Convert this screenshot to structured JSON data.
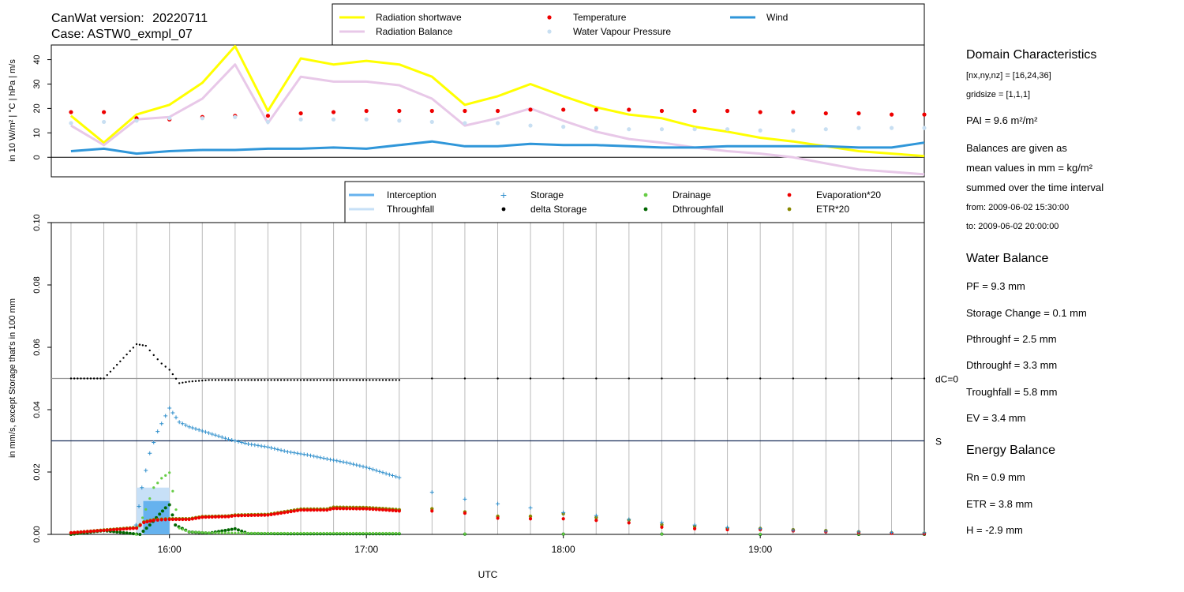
{
  "header": {
    "version_label": "CanWat version:",
    "version": "20220711",
    "case": "Case: ASTW0_exmpl_07"
  },
  "colors": {
    "radiation_shortwave": "#ffff00",
    "radiation_balance": "#e8c8e8",
    "temperature": "#ee0000",
    "water_vapour_pressure": "#c8dff2",
    "wind": "#2f96d9",
    "interception": "#66b2ee",
    "throughfall": "#c7e0f7",
    "storage": "#2f8fcc",
    "delta_storage": "#000000",
    "drainage": "#66cc44",
    "dthroughfall": "#006600",
    "evaporation": "#ee0000",
    "etr": "#888800",
    "grid": "#bbbbbb"
  },
  "info": {
    "domain_title": "Domain Characteristics",
    "dims": "[nx,ny,nz] = [16,24,36]",
    "gridsize": "gridsize = [1,1,1]",
    "pai": "PAI = 9.6 m²/m²",
    "balances_1": "Balances are given as",
    "balances_2": "mean values in mm = kg/m²",
    "balances_3": "summed over the time interval",
    "from": "from:  2009-06-02 15:30:00",
    "to": "to:       2009-06-02 20:00:00",
    "water_title": "Water Balance",
    "pf": "PF = 9.3 mm",
    "storage_change": "Storage Change = 0.1 mm",
    "pthroughf": "Pthroughf = 2.5 mm",
    "dthroughf": "Dthroughf = 3.3 mm",
    "troughfall": "Troughfall = 5.8 mm",
    "ev": "EV = 3.4 mm",
    "energy_title": "Energy Balance",
    "rn": "Rn = 0.9 mm",
    "etr": "ETR = 3.8 mm",
    "h": "H = -2.9 mm"
  },
  "chart_data": [
    {
      "type": "line",
      "ylabel": "in 10 W/m² | °C | hPa | m/s",
      "ylim": [
        -8,
        46
      ],
      "yticks": [
        0,
        10,
        20,
        30,
        40
      ],
      "xlim": [
        15.4,
        19.833
      ],
      "reference_line": 0,
      "legend_placement": "top",
      "x": [
        15.5,
        15.667,
        15.833,
        16.0,
        16.167,
        16.333,
        16.5,
        16.667,
        16.833,
        17.0,
        17.167,
        17.333,
        17.5,
        17.667,
        17.833,
        18.0,
        18.167,
        18.333,
        18.5,
        18.667,
        18.833,
        19.0,
        19.167,
        19.333,
        19.5,
        19.667,
        19.833
      ],
      "series": [
        {
          "name": "Radiation shortwave",
          "style": "line",
          "values": [
            17,
            6,
            17.5,
            21.5,
            30.5,
            45.5,
            19,
            40.5,
            38,
            39.5,
            38,
            33,
            21.5,
            25,
            30,
            25,
            20.5,
            17.5,
            16,
            12.5,
            10.5,
            8,
            6.5,
            4.5,
            2.5,
            1.5,
            0.5
          ]
        },
        {
          "name": "Radiation Balance",
          "style": "line",
          "values": [
            13,
            5,
            15.5,
            16.5,
            24,
            38,
            14,
            33,
            31,
            31,
            29.5,
            24,
            13,
            16,
            20,
            15,
            10.5,
            7.5,
            6,
            4,
            2.5,
            1.5,
            0,
            -2.5,
            -5,
            -6,
            -7
          ]
        },
        {
          "name": "Temperature",
          "style": "points",
          "values": [
            18.5,
            18.5,
            16,
            15.5,
            16.5,
            17,
            17,
            18,
            18.5,
            19,
            19,
            19,
            19,
            19,
            19.5,
            19.5,
            19.5,
            19.5,
            19,
            19,
            19,
            18.5,
            18.5,
            18,
            18,
            17.5,
            17.5
          ]
        },
        {
          "name": "Water Vapour Pressure",
          "style": "points",
          "values": [
            14,
            14.5,
            15,
            16,
            16,
            16.5,
            14.5,
            15.5,
            15.5,
            15.5,
            15,
            14.5,
            14,
            14,
            13,
            12.5,
            12,
            11.5,
            11.5,
            11.5,
            11.5,
            11,
            11,
            11.5,
            12,
            12,
            12
          ]
        },
        {
          "name": "Wind",
          "style": "line",
          "values": [
            2.5,
            3.5,
            1.5,
            2.5,
            3,
            3,
            3.5,
            3.5,
            4,
            3.5,
            5,
            6.5,
            4.5,
            4.5,
            5.5,
            5,
            5,
            4.5,
            4,
            4,
            4.5,
            4.5,
            4.5,
            4.5,
            4,
            4,
            6
          ]
        }
      ]
    },
    {
      "type": "scatter",
      "xlabel": "UTC",
      "ylabel": "in mm/s, except Storage that's in 100 mm",
      "ylim": [
        0,
        0.1
      ],
      "yticks": [
        "0.00",
        "0.02",
        "0.04",
        "0.06",
        "0.08",
        "0.10"
      ],
      "xlim": [
        15.4,
        19.833
      ],
      "xticks": [
        "16:00",
        "17:00",
        "18:00",
        "19:00"
      ],
      "xtick_values": [
        16,
        17,
        18,
        19
      ],
      "grid": true,
      "reference_lines": [
        {
          "label": "dC=0",
          "y": 0.05
        },
        {
          "label": "S",
          "y": 0.03
        }
      ],
      "legend_placement": "top",
      "series": [
        {
          "name": "Interception",
          "style": "bar"
        },
        {
          "name": "Throughfall",
          "style": "bar"
        },
        {
          "name": "Storage",
          "style": "plus"
        },
        {
          "name": "delta Storage",
          "style": "dots"
        },
        {
          "name": "Drainage",
          "style": "dots"
        },
        {
          "name": "Dthroughfall",
          "style": "dots"
        },
        {
          "name": "Evaporation*20",
          "style": "dots"
        },
        {
          "name": "ETR*20",
          "style": "dots"
        }
      ],
      "bars": [
        {
          "series": "Throughfall",
          "x0": 15.833,
          "x1": 16.0,
          "y": 0.015
        },
        {
          "series": "Interception",
          "x0": 15.867,
          "x1": 16.0,
          "y": 0.0107
        }
      ],
      "storage_x": [
        15.83,
        15.86,
        15.9,
        15.94,
        15.98,
        16.0,
        16.05,
        16.1,
        16.2,
        16.3,
        16.4,
        16.5,
        16.6,
        16.7,
        16.8,
        16.9,
        17.0,
        17.1,
        17.167,
        17.333,
        17.5,
        17.667,
        17.833,
        18.0,
        18.167,
        18.333,
        18.5,
        18.667,
        18.833,
        19.0,
        19.167,
        19.333,
        19.5,
        19.667,
        19.833
      ],
      "storage_y": [
        0.003,
        0.015,
        0.026,
        0.033,
        0.038,
        0.0405,
        0.036,
        0.0345,
        0.0325,
        0.0305,
        0.029,
        0.028,
        0.0265,
        0.0255,
        0.0242,
        0.023,
        0.0215,
        0.0195,
        0.0182,
        0.0135,
        0.0113,
        0.0098,
        0.0085,
        0.007,
        0.006,
        0.0048,
        0.0038,
        0.003,
        0.0022,
        0.0018,
        0.0013,
        0.001,
        0.0008,
        0.0006,
        0.0005
      ],
      "delta_storage_x": [
        15.5,
        15.667,
        15.833,
        15.88,
        15.92,
        15.96,
        16.0,
        16.05,
        16.1,
        16.2,
        16.3,
        16.4,
        16.5,
        16.6,
        16.7,
        16.8,
        16.9,
        17.0,
        17.1,
        17.167,
        17.333,
        17.5,
        17.667,
        17.833,
        18.0,
        18.167,
        18.333,
        18.5,
        18.667,
        18.833,
        19.0,
        19.167,
        19.333,
        19.5,
        19.667,
        19.833
      ],
      "delta_storage_y": [
        0.05,
        0.05,
        0.061,
        0.0605,
        0.0575,
        0.0548,
        0.0528,
        0.0485,
        0.049,
        0.0495,
        0.0495,
        0.0495,
        0.0495,
        0.0495,
        0.0495,
        0.0495,
        0.0495,
        0.0495,
        0.0495,
        0.0495,
        0.05,
        0.05,
        0.05,
        0.05,
        0.05,
        0.05,
        0.05,
        0.05,
        0.05,
        0.05,
        0.05,
        0.05,
        0.05,
        0.05,
        0.05,
        0.05
      ],
      "drainage_x": [
        15.83,
        15.88,
        15.92,
        15.96,
        16.0,
        16.05,
        16.1,
        16.2,
        16.4,
        16.6,
        16.8,
        17.0,
        17.167,
        17.5,
        18.0,
        18.5,
        19.0,
        19.5,
        19.833
      ],
      "drainage_y": [
        0.0,
        0.008,
        0.015,
        0.018,
        0.0198,
        0.002,
        0.0008,
        0.0005,
        0.0004,
        0.0004,
        0.0004,
        0.0004,
        0.0004,
        0.0002,
        0.0001,
        0.0001,
        0.0001,
        0.0001,
        0.0001
      ],
      "dthroughfall_x": [
        15.5,
        15.667,
        15.85,
        15.9,
        15.95,
        15.98,
        16.0,
        16.03,
        16.1,
        16.2,
        16.333,
        16.4,
        16.6,
        16.8,
        17.0,
        17.167,
        17.5,
        18.0,
        18.5,
        19.0,
        19.5,
        19.833
      ],
      "dthroughfall_y": [
        0.0,
        0.0012,
        0.0,
        0.003,
        0.0065,
        0.0085,
        0.0095,
        0.003,
        0.0008,
        0.0004,
        0.0018,
        0.0003,
        0.0002,
        0.0002,
        0.0002,
        0.0002,
        0.0001,
        0.0001,
        0.0001,
        0.0,
        0.0,
        0.0
      ],
      "evaporation_x": [
        15.5,
        15.667,
        15.833,
        15.87,
        15.92,
        15.96,
        16.0,
        16.1,
        16.167,
        16.3,
        16.333,
        16.5,
        16.667,
        16.8,
        16.833,
        17.0,
        17.1,
        17.167,
        17.333,
        17.5,
        17.667,
        17.833,
        18.0,
        18.167,
        18.333,
        18.5,
        18.667,
        18.833,
        19.0,
        19.167,
        19.333,
        19.5,
        19.667,
        19.833
      ],
      "evaporation_y": [
        0.0005,
        0.0013,
        0.002,
        0.0038,
        0.0045,
        0.0047,
        0.0048,
        0.0048,
        0.0055,
        0.0057,
        0.006,
        0.0062,
        0.0078,
        0.0078,
        0.0083,
        0.0082,
        0.0078,
        0.0075,
        0.0075,
        0.0068,
        0.0052,
        0.005,
        0.005,
        0.0045,
        0.0037,
        0.0023,
        0.0018,
        0.0015,
        0.0015,
        0.0011,
        0.0008,
        0.0005,
        0.0003,
        0.0002
      ],
      "etr_x": [
        15.5,
        15.667,
        15.833,
        15.87,
        15.92,
        15.96,
        16.0,
        16.1,
        16.167,
        16.3,
        16.333,
        16.5,
        16.667,
        16.8,
        16.833,
        17.0,
        17.1,
        17.167,
        17.333,
        17.5,
        17.667,
        17.833,
        18.0,
        18.167,
        18.333,
        18.5,
        18.667,
        18.833,
        19.0,
        19.167,
        19.333,
        19.5,
        19.667,
        19.833
      ],
      "etr_y": [
        0.0005,
        0.0014,
        0.0022,
        0.004,
        0.0047,
        0.0049,
        0.005,
        0.005,
        0.0057,
        0.0059,
        0.0062,
        0.0064,
        0.0081,
        0.0081,
        0.0087,
        0.0086,
        0.0082,
        0.0079,
        0.0082,
        0.0072,
        0.0058,
        0.0058,
        0.0066,
        0.0054,
        0.0046,
        0.0031,
        0.0025,
        0.0019,
        0.0019,
        0.0015,
        0.0012,
        0.0008,
        0.0005,
        0.0004
      ]
    }
  ]
}
